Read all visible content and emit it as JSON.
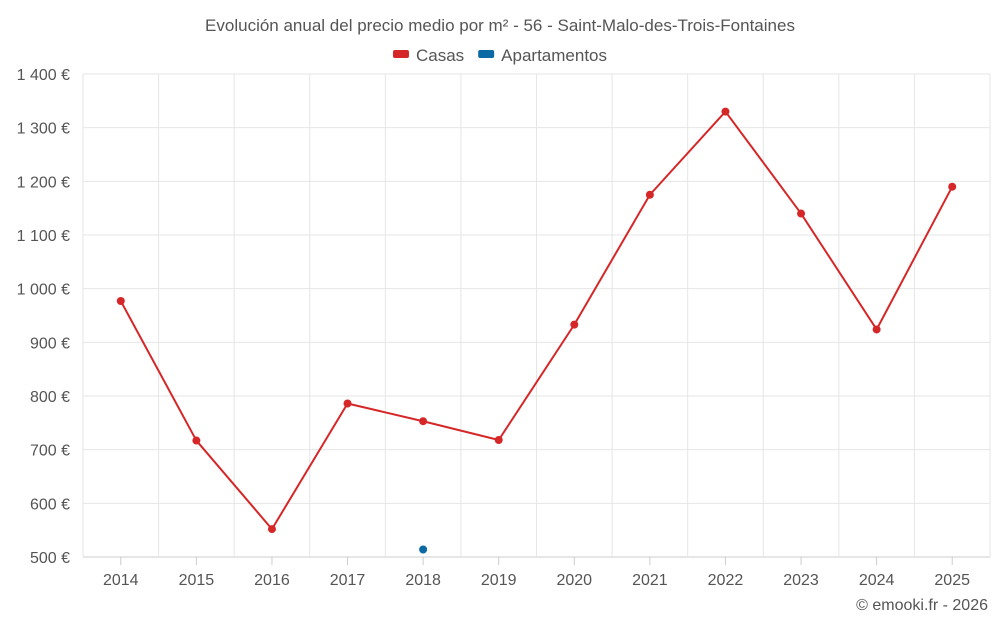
{
  "chart_data": {
    "type": "line",
    "title": "Evolución anual del precio medio por m² - 56 - Saint-Malo-des-Trois-Fontaines",
    "categories": [
      "2014",
      "2015",
      "2016",
      "2017",
      "2018",
      "2019",
      "2020",
      "2021",
      "2022",
      "2023",
      "2024",
      "2025"
    ],
    "series": [
      {
        "name": "Casas",
        "color": "#d62728",
        "values": [
          977,
          717,
          552,
          786,
          753,
          718,
          933,
          1175,
          1330,
          1140,
          924,
          1190
        ]
      },
      {
        "name": "Apartamentos",
        "color": "#0b6aa3",
        "values": [
          null,
          null,
          null,
          null,
          514,
          null,
          null,
          null,
          null,
          null,
          null,
          null
        ]
      }
    ],
    "ylim": [
      500,
      1400
    ],
    "yticks": [
      500,
      600,
      700,
      800,
      900,
      1000,
      1100,
      1200,
      1300,
      1400
    ],
    "ytick_labels": [
      "500 €",
      "600 €",
      "700 €",
      "800 €",
      "900 €",
      "1 000 €",
      "1 100 €",
      "1 200 €",
      "1 300 €",
      "1 400 €"
    ],
    "xlabel": "",
    "ylabel": "",
    "grid": true,
    "legend_position": "top-center",
    "credit": "© emooki.fr - 2026"
  }
}
